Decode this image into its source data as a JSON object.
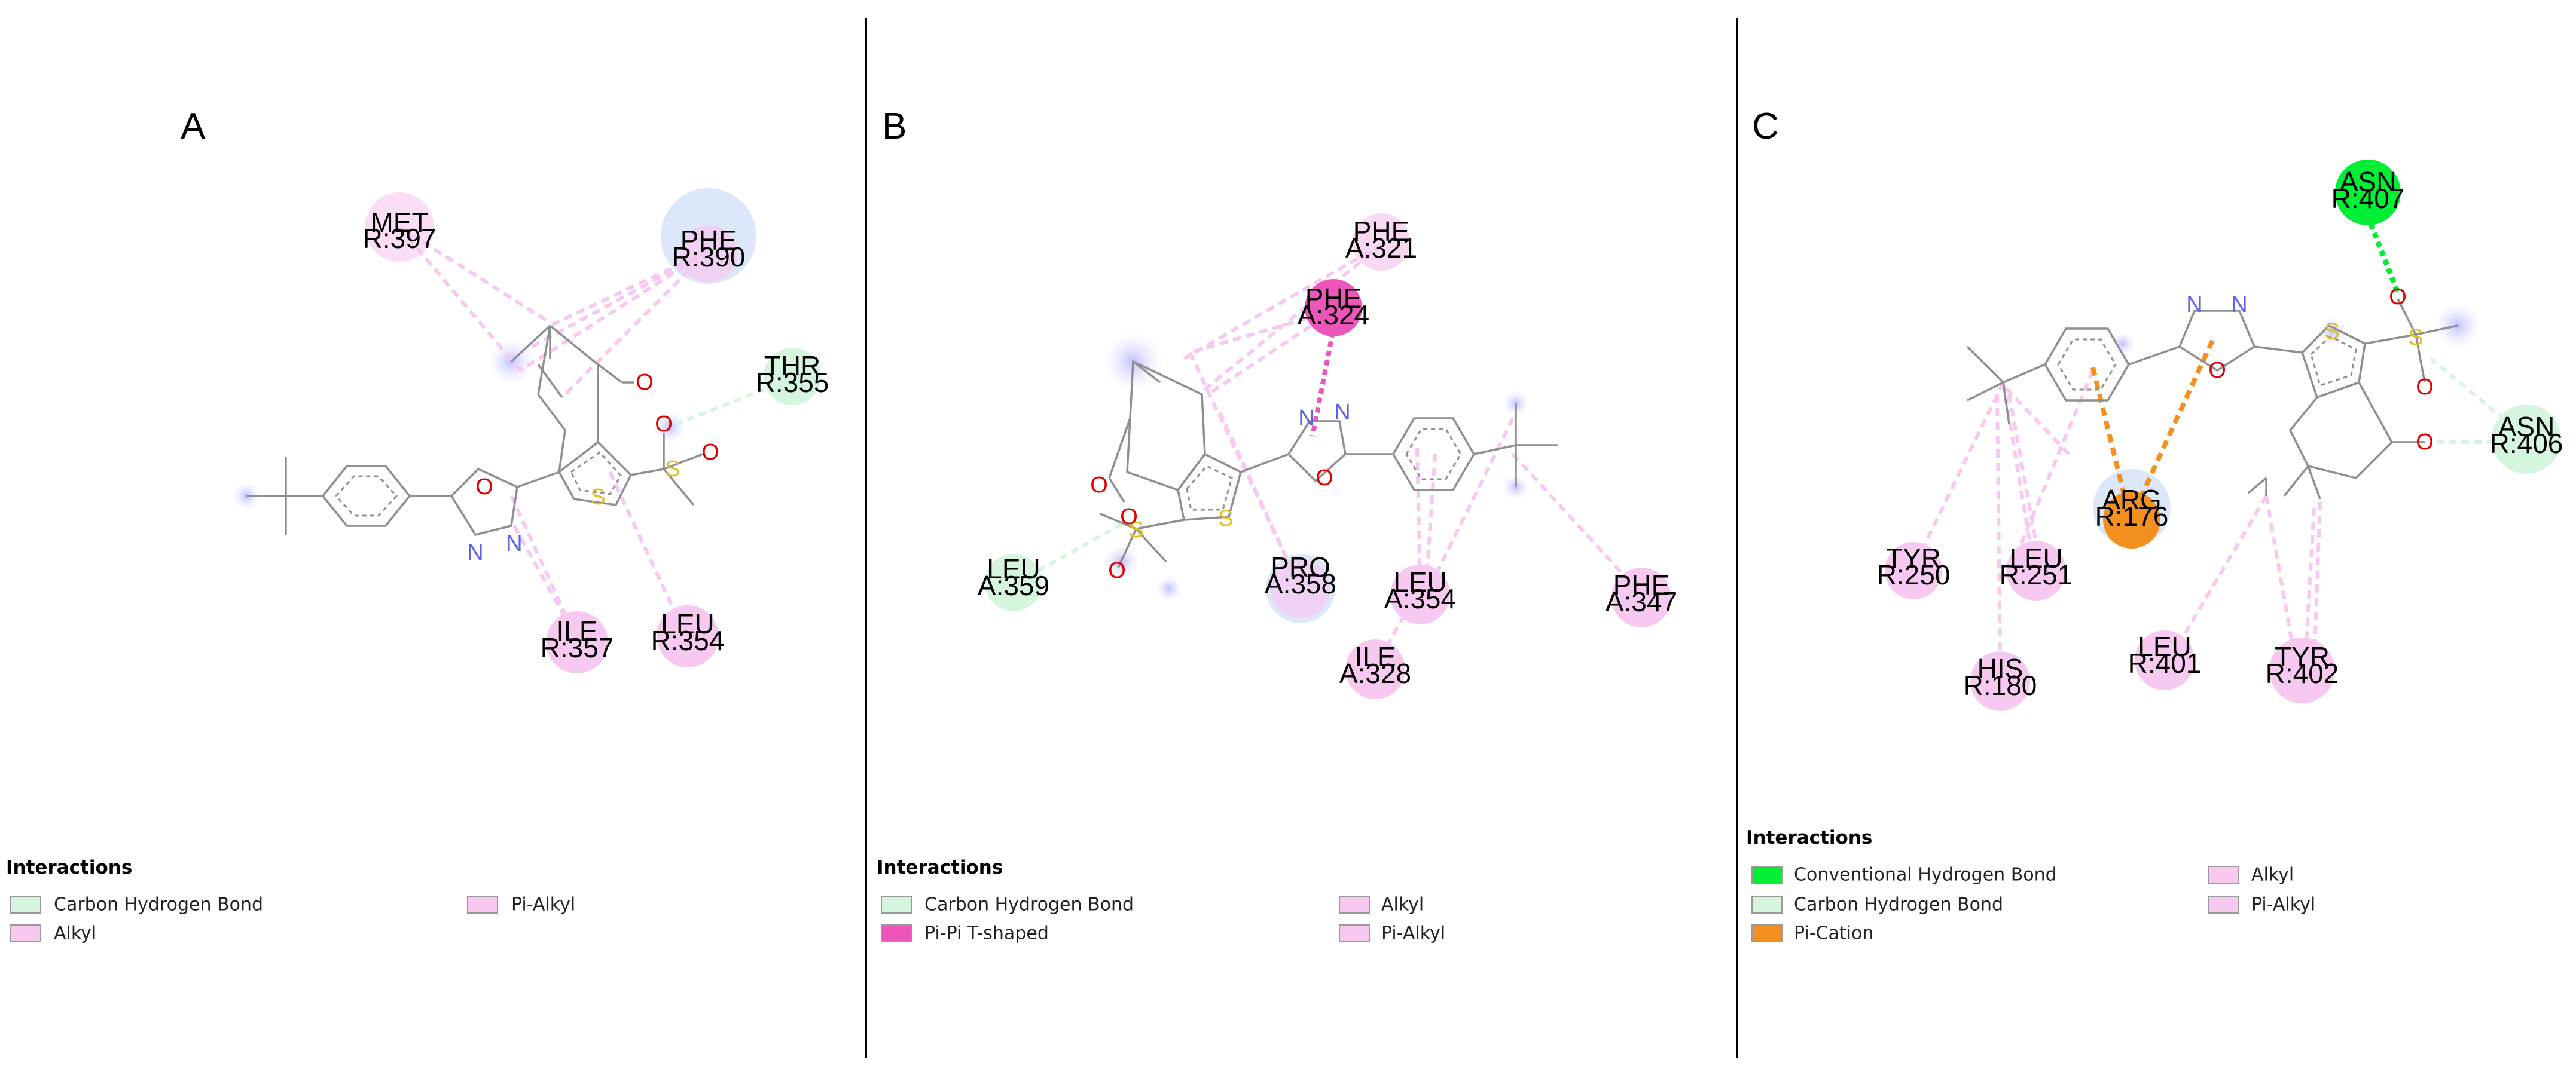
{
  "colors": {
    "carbon_h_bond": "#d6f5df",
    "alkyl": "#f7c8f0",
    "pi_alkyl": "#f7c8f0",
    "pi_pi_t": "#ee55bb",
    "conventional_h_bond": "#00ee33",
    "pi_cation": "#f39020",
    "atom_N": "#6060f0",
    "atom_O": "#e00000",
    "atom_S": "#e0c020"
  },
  "panels": [
    {
      "label": "A",
      "legend_title": "Interactions",
      "legend": [
        {
          "label": "Carbon Hydrogen Bond",
          "color": "#d6f5df"
        },
        {
          "label": "Alkyl",
          "color": "#f7c8f0"
        },
        {
          "label": "Pi-Alkyl",
          "color": "#f7c8f0"
        }
      ],
      "residues": [
        {
          "name": "MET",
          "id": "R:397",
          "type": "alkyl"
        },
        {
          "name": "PHE",
          "id": "R:390",
          "type": "pi-alkyl"
        },
        {
          "name": "THR",
          "id": "R:355",
          "type": "carbon-h-bond"
        },
        {
          "name": "ILE",
          "id": "R:357",
          "type": "alkyl"
        },
        {
          "name": "LEU",
          "id": "R:354",
          "type": "alkyl"
        }
      ]
    },
    {
      "label": "B",
      "legend_title": "Interactions",
      "legend": [
        {
          "label": "Carbon Hydrogen Bond",
          "color": "#d6f5df"
        },
        {
          "label": "Pi-Pi T-shaped",
          "color": "#ee55bb"
        },
        {
          "label": "Alkyl",
          "color": "#f7c8f0"
        },
        {
          "label": "Pi-Alkyl",
          "color": "#f7c8f0"
        }
      ],
      "residues": [
        {
          "name": "PHE",
          "id": "A:321",
          "type": "pi-alkyl"
        },
        {
          "name": "PHE",
          "id": "A:324",
          "type": "pi-pi-t"
        },
        {
          "name": "LEU",
          "id": "A:359",
          "type": "carbon-h-bond"
        },
        {
          "name": "PRO",
          "id": "A:358",
          "type": "alkyl"
        },
        {
          "name": "LEU",
          "id": "A:354",
          "type": "alkyl"
        },
        {
          "name": "ILE",
          "id": "A:328",
          "type": "alkyl"
        },
        {
          "name": "PHE",
          "id": "A:347",
          "type": "pi-alkyl"
        }
      ]
    },
    {
      "label": "C",
      "legend_title": "Interactions",
      "legend": [
        {
          "label": "Conventional Hydrogen Bond",
          "color": "#00ee33"
        },
        {
          "label": "Carbon Hydrogen Bond",
          "color": "#d6f5df"
        },
        {
          "label": "Pi-Cation",
          "color": "#f39020"
        },
        {
          "label": "Alkyl",
          "color": "#f7c8f0"
        },
        {
          "label": "Pi-Alkyl",
          "color": "#f7c8f0"
        }
      ],
      "residues": [
        {
          "name": "ASN",
          "id": "R:407",
          "type": "conventional-h-bond"
        },
        {
          "name": "ASN",
          "id": "R:406",
          "type": "carbon-h-bond"
        },
        {
          "name": "ARG",
          "id": "R:176",
          "type": "pi-cation"
        },
        {
          "name": "TYR",
          "id": "R:250",
          "type": "alkyl"
        },
        {
          "name": "LEU",
          "id": "R:251",
          "type": "alkyl"
        },
        {
          "name": "HIS",
          "id": "R:180",
          "type": "alkyl"
        },
        {
          "name": "LEU",
          "id": "R:401",
          "type": "alkyl"
        },
        {
          "name": "TYR",
          "id": "R:402",
          "type": "alkyl"
        }
      ]
    }
  ],
  "atoms": {
    "N": "N",
    "O": "O",
    "S": "S"
  }
}
